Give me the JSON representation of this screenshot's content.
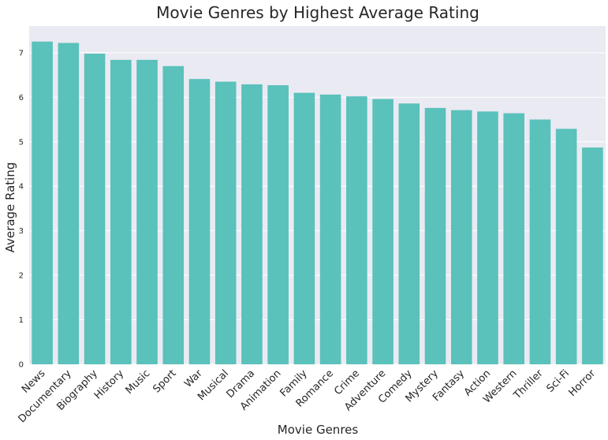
{
  "chart_data": {
    "type": "bar",
    "title": "Movie Genres by Highest Average Rating",
    "xlabel": "Movie Genres",
    "ylabel": "Average Rating",
    "categories": [
      "News",
      "Documentary",
      "Biography",
      "History",
      "Music",
      "Sport",
      "War",
      "Musical",
      "Drama",
      "Animation",
      "Family",
      "Romance",
      "Crime",
      "Adventure",
      "Comedy",
      "Mystery",
      "Fantasy",
      "Action",
      "Western",
      "Thriller",
      "Sci-Fi",
      "Horror"
    ],
    "values": [
      7.25,
      7.22,
      6.98,
      6.84,
      6.84,
      6.7,
      6.41,
      6.35,
      6.29,
      6.27,
      6.1,
      6.06,
      6.02,
      5.96,
      5.86,
      5.76,
      5.71,
      5.68,
      5.64,
      5.5,
      5.29,
      4.87
    ],
    "yticks": [
      "0",
      "1",
      "2",
      "3",
      "4",
      "5",
      "6",
      "7"
    ],
    "ylim": [
      0,
      7.6
    ],
    "grid": true,
    "colors": {
      "bar": "#5ac1bb",
      "plot_background": "#eaeaf2",
      "grid": "#ffffff",
      "text": "#262626"
    }
  }
}
